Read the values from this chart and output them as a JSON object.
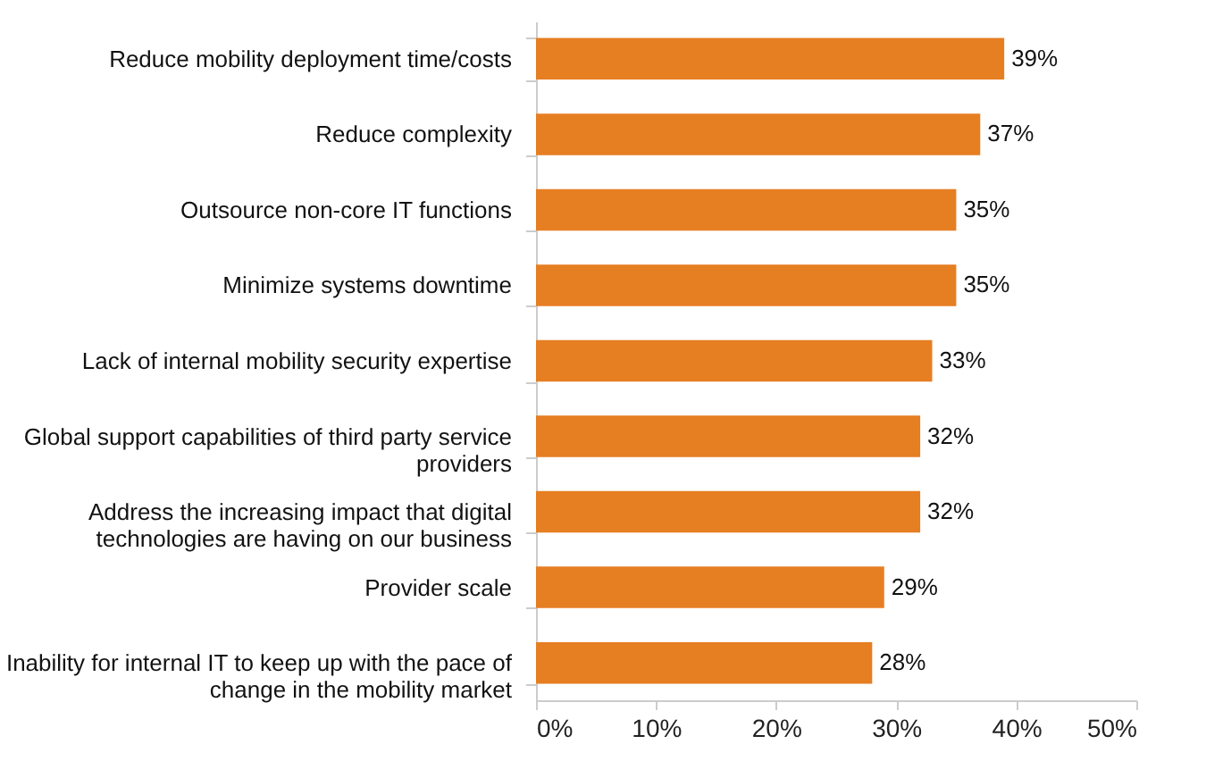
{
  "chart_data": {
    "type": "bar",
    "orientation": "horizontal",
    "categories": [
      "Reduce mobility deployment time/costs",
      "Reduce complexity",
      "Outsource non-core IT functions",
      "Minimize systems downtime",
      "Lack of internal mobility security expertise",
      "Global support capabilities of third party service providers",
      "Address the increasing impact that digital technologies are having on our business",
      "Provider scale",
      "Inability for internal IT to keep up with the pace of change in the mobility market"
    ],
    "values": [
      39,
      37,
      35,
      35,
      33,
      32,
      32,
      29,
      28
    ],
    "value_labels": [
      "39%",
      "37%",
      "35%",
      "35%",
      "33%",
      "32%",
      "32%",
      "29%",
      "28%"
    ],
    "color": "#e67e22",
    "xlim": [
      0,
      50
    ],
    "xticks": [
      {
        "value": 0,
        "label": "0%"
      },
      {
        "value": 10,
        "label": "10%"
      },
      {
        "value": 20,
        "label": "20%"
      },
      {
        "value": 30,
        "label": "30%"
      },
      {
        "value": 40,
        "label": "40%"
      },
      {
        "value": 50,
        "label": "50%"
      }
    ],
    "grid": false
  }
}
